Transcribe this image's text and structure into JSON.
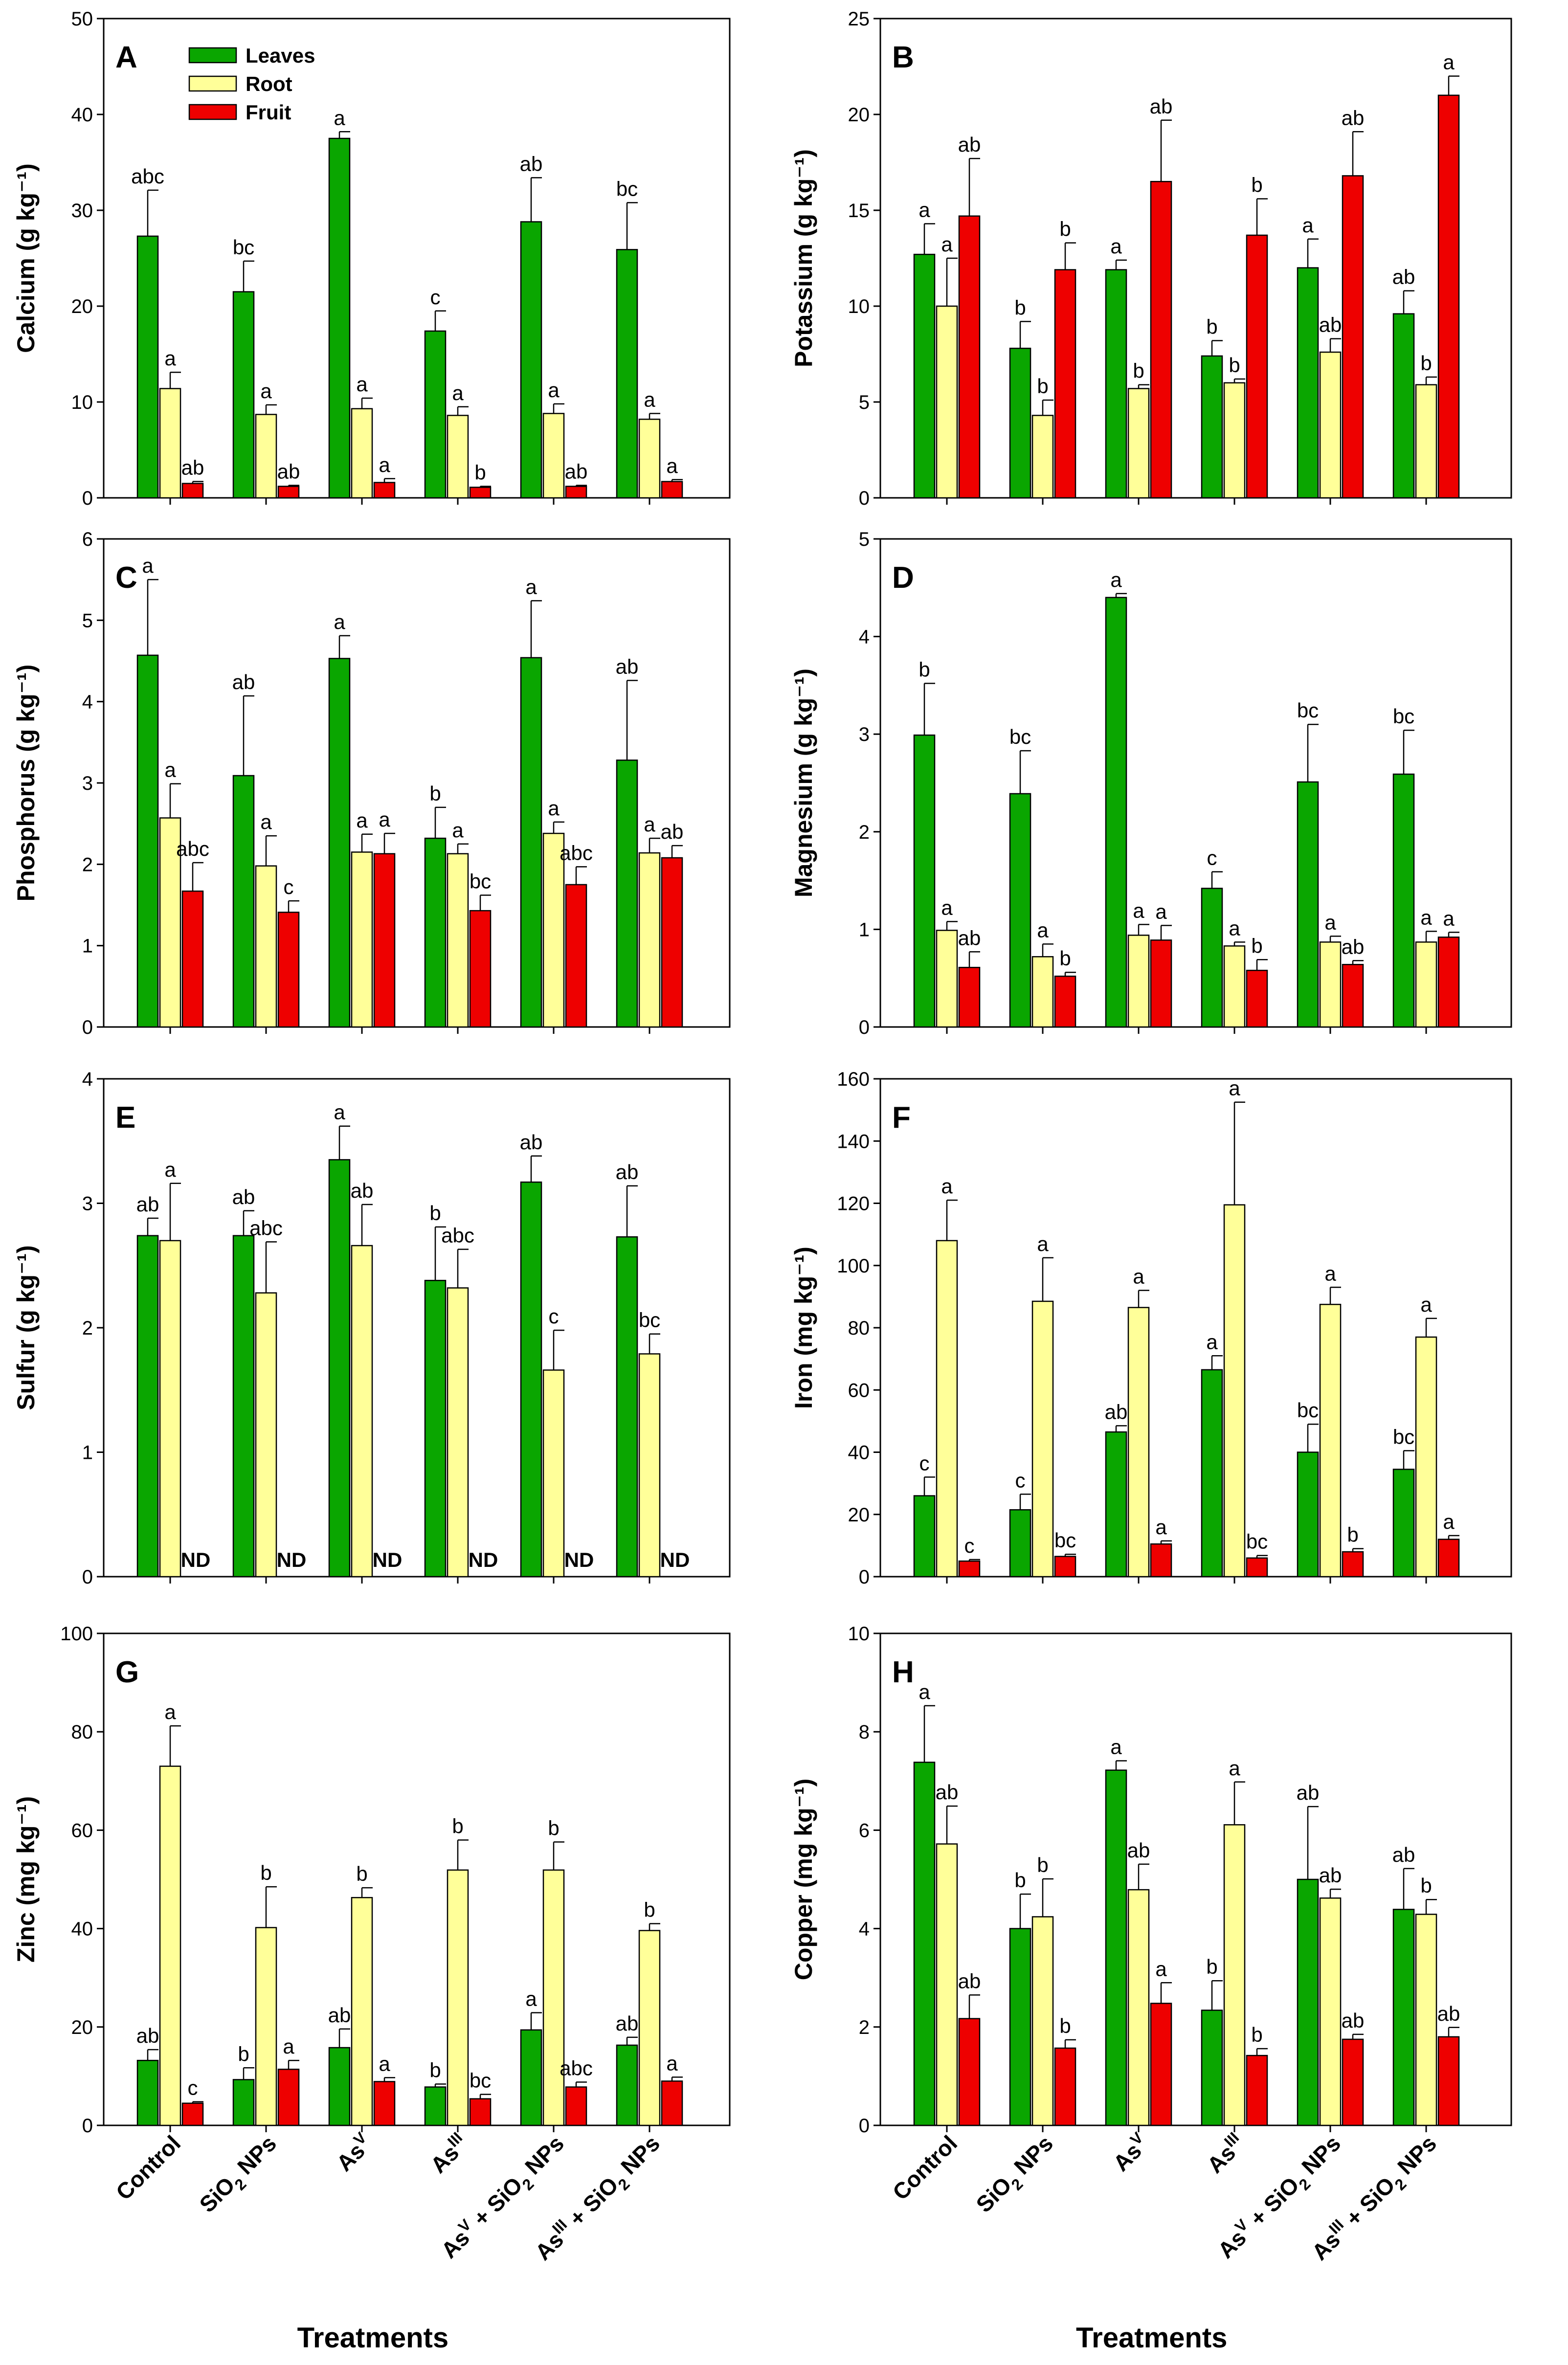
{
  "figure": {
    "series_names": [
      "Leaves",
      "Root",
      "Fruit"
    ],
    "series_colors": [
      "#0aa600",
      "#ffff99",
      "#ee0000"
    ],
    "x_title": "Treatments",
    "categories": [
      {
        "base": "Control",
        "sup": "",
        "sub": "",
        "tail": ""
      },
      {
        "base": "SiO",
        "sup": "",
        "sub": "2",
        "tail": " NPs"
      },
      {
        "base": "As",
        "sup": "V",
        "sub": "",
        "tail": ""
      },
      {
        "base": "As",
        "sup": "III",
        "sub": "",
        "tail": ""
      },
      {
        "base": "As",
        "sup": "V",
        "sub": "",
        "tail": " + SiO",
        "sub2": "2",
        "tail2": " NPs"
      },
      {
        "base": "As",
        "sup": "III",
        "sub": "",
        "tail": " + SiO",
        "sub2": "2",
        "tail2": " NPs"
      }
    ]
  },
  "chart_data": [
    {
      "type": "bar",
      "panel": "A",
      "ylabel": "Calcium (g kg⁻¹)",
      "ylim": [
        0,
        50
      ],
      "yticks": [
        0,
        10,
        20,
        30,
        40,
        50
      ],
      "legend": "top-left",
      "series": [
        {
          "name": "Leaves",
          "values": [
            27.3,
            21.5,
            37.5,
            17.4,
            28.8,
            25.9
          ],
          "errors": [
            4.8,
            3.2,
            0.7,
            2.1,
            4.6,
            4.9
          ],
          "labels": [
            "abc",
            "bc",
            "a",
            "c",
            "ab",
            "bc"
          ]
        },
        {
          "name": "Root",
          "values": [
            11.4,
            8.7,
            9.3,
            8.6,
            8.8,
            8.2
          ],
          "errors": [
            1.7,
            1.0,
            1.1,
            0.9,
            1.0,
            0.6
          ],
          "labels": [
            "a",
            "a",
            "a",
            "a",
            "a",
            "a"
          ]
        },
        {
          "name": "Fruit",
          "values": [
            1.5,
            1.2,
            1.6,
            1.1,
            1.2,
            1.7
          ],
          "errors": [
            0.2,
            0.1,
            0.4,
            0.1,
            0.1,
            0.2
          ],
          "labels": [
            "ab",
            "ab",
            "a",
            "b",
            "ab",
            "a"
          ]
        }
      ]
    },
    {
      "type": "bar",
      "panel": "B",
      "ylabel": "Potassium (g kg⁻¹)",
      "ylim": [
        0,
        25
      ],
      "yticks": [
        0,
        5,
        10,
        15,
        20,
        25
      ],
      "series": [
        {
          "name": "Leaves",
          "values": [
            12.7,
            7.8,
            11.9,
            7.4,
            12.0,
            9.6
          ],
          "errors": [
            1.6,
            1.4,
            0.5,
            0.8,
            1.5,
            1.2
          ],
          "labels": [
            "a",
            "b",
            "a",
            "b",
            "a",
            "ab"
          ]
        },
        {
          "name": "Root",
          "values": [
            10.0,
            4.3,
            5.7,
            6.0,
            7.6,
            5.9
          ],
          "errors": [
            2.5,
            0.8,
            0.2,
            0.2,
            0.7,
            0.4
          ],
          "labels": [
            "a",
            "b",
            "b",
            "b",
            "ab",
            "b"
          ]
        },
        {
          "name": "Fruit",
          "values": [
            14.7,
            11.9,
            16.5,
            13.7,
            16.8,
            21.0
          ],
          "errors": [
            3.0,
            1.4,
            3.2,
            1.9,
            2.3,
            1.0
          ],
          "labels": [
            "ab",
            "b",
            "ab",
            "b",
            "ab",
            "a"
          ]
        }
      ]
    },
    {
      "type": "bar",
      "panel": "C",
      "ylabel": "Phosphorus (g kg⁻¹)",
      "ylim": [
        0,
        6
      ],
      "yticks": [
        0,
        1,
        2,
        3,
        4,
        5,
        6
      ],
      "series": [
        {
          "name": "Leaves",
          "values": [
            4.57,
            3.09,
            4.53,
            2.32,
            4.54,
            3.28
          ],
          "errors": [
            0.93,
            0.98,
            0.28,
            0.38,
            0.7,
            0.98
          ],
          "labels": [
            "a",
            "ab",
            "a",
            "b",
            "a",
            "ab"
          ]
        },
        {
          "name": "Root",
          "values": [
            2.57,
            1.98,
            2.15,
            2.13,
            2.38,
            2.14
          ],
          "errors": [
            0.42,
            0.37,
            0.22,
            0.12,
            0.14,
            0.18
          ],
          "labels": [
            "a",
            "a",
            "a",
            "a",
            "a",
            "a"
          ]
        },
        {
          "name": "Fruit",
          "values": [
            1.67,
            1.41,
            2.13,
            1.43,
            1.75,
            2.08
          ],
          "errors": [
            0.35,
            0.14,
            0.25,
            0.19,
            0.22,
            0.15
          ],
          "labels": [
            "abc",
            "c",
            "a",
            "bc",
            "abc",
            "ab"
          ]
        }
      ]
    },
    {
      "type": "bar",
      "panel": "D",
      "ylabel": "Magnesium (g kg⁻¹)",
      "ylim": [
        0,
        5
      ],
      "yticks": [
        0,
        1,
        2,
        3,
        4,
        5
      ],
      "series": [
        {
          "name": "Leaves",
          "values": [
            2.99,
            2.39,
            4.4,
            1.42,
            2.51,
            2.59
          ],
          "errors": [
            0.53,
            0.44,
            0.04,
            0.17,
            0.59,
            0.45
          ],
          "labels": [
            "b",
            "bc",
            "a",
            "c",
            "bc",
            "bc"
          ]
        },
        {
          "name": "Root",
          "values": [
            0.99,
            0.72,
            0.94,
            0.83,
            0.87,
            0.87
          ],
          "errors": [
            0.09,
            0.13,
            0.11,
            0.04,
            0.06,
            0.11
          ],
          "labels": [
            "a",
            "a",
            "a",
            "a",
            "a",
            "a"
          ]
        },
        {
          "name": "Fruit",
          "values": [
            0.61,
            0.52,
            0.89,
            0.58,
            0.64,
            0.92
          ],
          "errors": [
            0.16,
            0.04,
            0.15,
            0.11,
            0.04,
            0.05
          ],
          "labels": [
            "ab",
            "b",
            "a",
            "b",
            "ab",
            "a"
          ]
        }
      ]
    },
    {
      "type": "bar",
      "panel": "E",
      "ylabel": "Sulfur (g kg⁻¹)",
      "ylim": [
        0,
        4
      ],
      "yticks": [
        0,
        1,
        2,
        3,
        4
      ],
      "series": [
        {
          "name": "Leaves",
          "values": [
            2.74,
            2.74,
            3.35,
            2.38,
            3.17,
            2.73
          ],
          "errors": [
            0.14,
            0.2,
            0.27,
            0.43,
            0.21,
            0.41
          ],
          "labels": [
            "ab",
            "ab",
            "a",
            "b",
            "ab",
            "ab"
          ]
        },
        {
          "name": "Root",
          "values": [
            2.7,
            2.28,
            2.66,
            2.32,
            1.66,
            1.79
          ],
          "errors": [
            0.46,
            0.41,
            0.33,
            0.31,
            0.32,
            0.16
          ],
          "labels": [
            "a",
            "abc",
            "ab",
            "abc",
            "c",
            "bc"
          ]
        },
        {
          "name": "Fruit",
          "values": [
            null,
            null,
            null,
            null,
            null,
            null
          ],
          "errors": [
            null,
            null,
            null,
            null,
            null,
            null
          ],
          "labels": [
            "ND",
            "ND",
            "ND",
            "ND",
            "ND",
            "ND"
          ]
        }
      ]
    },
    {
      "type": "bar",
      "panel": "F",
      "ylabel": "Iron (mg kg⁻¹)",
      "ylim": [
        0,
        160
      ],
      "yticks": [
        0,
        20,
        40,
        60,
        80,
        100,
        120,
        140,
        160
      ],
      "series": [
        {
          "name": "Leaves",
          "values": [
            26,
            21.5,
            46.5,
            66.5,
            40,
            34.5
          ],
          "errors": [
            6,
            5,
            2,
            4.5,
            9,
            6
          ],
          "labels": [
            "c",
            "c",
            "ab",
            "a",
            "bc",
            "bc"
          ]
        },
        {
          "name": "Root",
          "values": [
            108,
            88.5,
            86.5,
            119.5,
            87.5,
            77
          ],
          "errors": [
            13,
            14,
            5.5,
            33,
            5.5,
            6
          ],
          "labels": [
            "a",
            "a",
            "a",
            "a",
            "a",
            "a"
          ]
        },
        {
          "name": "Fruit",
          "values": [
            5,
            6.5,
            10.5,
            6,
            8,
            12
          ],
          "errors": [
            0.5,
            0.7,
            1.0,
            0.8,
            1.0,
            1.2
          ],
          "labels": [
            "c",
            "bc",
            "a",
            "bc",
            "b",
            "a"
          ]
        }
      ]
    },
    {
      "type": "bar",
      "panel": "G",
      "ylabel": "Zinc (mg kg⁻¹)",
      "ylim": [
        0,
        100
      ],
      "yticks": [
        0,
        20,
        40,
        60,
        80,
        100
      ],
      "series": [
        {
          "name": "Leaves",
          "values": [
            13.2,
            9.3,
            15.8,
            7.8,
            19.4,
            16.3
          ],
          "errors": [
            2.2,
            2.4,
            3.8,
            0.6,
            3.5,
            1.6
          ],
          "labels": [
            "ab",
            "b",
            "ab",
            "b",
            "a",
            "ab"
          ]
        },
        {
          "name": "Root",
          "values": [
            73.0,
            40.2,
            46.3,
            51.9,
            51.9,
            39.6
          ],
          "errors": [
            8.2,
            8.3,
            2.0,
            6.1,
            5.7,
            1.4
          ],
          "labels": [
            "a",
            "b",
            "b",
            "b",
            "b",
            "b"
          ]
        },
        {
          "name": "Fruit",
          "values": [
            4.5,
            11.4,
            8.9,
            5.4,
            7.8,
            9.0
          ],
          "errors": [
            0.3,
            1.8,
            0.8,
            0.9,
            1.0,
            0.8
          ],
          "labels": [
            "c",
            "a",
            "a",
            "bc",
            "abc",
            "a"
          ]
        }
      ]
    },
    {
      "type": "bar",
      "panel": "H",
      "ylabel": "Copper (mg kg⁻¹)",
      "ylim": [
        0,
        10
      ],
      "yticks": [
        0,
        2,
        4,
        6,
        8,
        10
      ],
      "series": [
        {
          "name": "Leaves",
          "values": [
            7.38,
            4.0,
            7.22,
            2.34,
            5.0,
            4.39
          ],
          "errors": [
            1.15,
            0.7,
            0.19,
            0.6,
            1.48,
            0.83
          ],
          "labels": [
            "a",
            "b",
            "a",
            "b",
            "ab",
            "ab"
          ]
        },
        {
          "name": "Root",
          "values": [
            5.72,
            4.24,
            4.79,
            6.11,
            4.62,
            4.29
          ],
          "errors": [
            0.77,
            0.77,
            0.52,
            0.87,
            0.18,
            0.3
          ],
          "labels": [
            "ab",
            "b",
            "ab",
            "a",
            "ab",
            "b"
          ]
        },
        {
          "name": "Fruit",
          "values": [
            2.17,
            1.57,
            2.48,
            1.42,
            1.75,
            1.8
          ],
          "errors": [
            0.48,
            0.17,
            0.42,
            0.14,
            0.1,
            0.19
          ],
          "labels": [
            "ab",
            "b",
            "a",
            "b",
            "ab",
            "ab"
          ]
        }
      ]
    }
  ]
}
